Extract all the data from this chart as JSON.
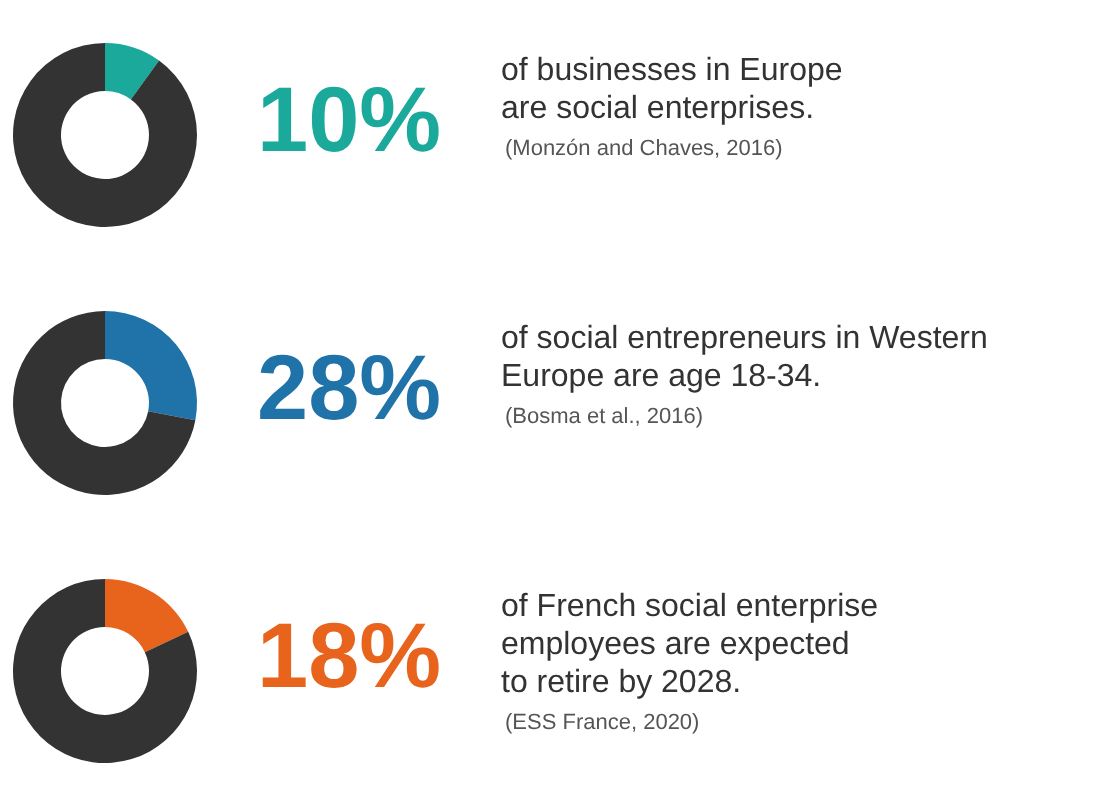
{
  "chart_data": [
    {
      "type": "donut",
      "categories": [
        null,
        null
      ],
      "values": [
        10,
        90
      ],
      "colors": [
        "#1aa99a",
        "#333333"
      ],
      "title": "10%",
      "subtitle": "of businesses in Europe\nare social enterprises.",
      "annotations": [
        "(Monzón and Chaves, 2016)"
      ]
    },
    {
      "type": "donut",
      "categories": [
        null,
        null
      ],
      "values": [
        28,
        72
      ],
      "colors": [
        "#1f73a8",
        "#333333"
      ],
      "title": "28%",
      "subtitle": "of social entrepreneurs in Western\nEurope are age 18-34.",
      "annotations": [
        "(Bosma et al., 2016)"
      ]
    },
    {
      "type": "donut",
      "categories": [
        null,
        null
      ],
      "values": [
        18,
        82
      ],
      "colors": [
        "#e8631c",
        "#333333"
      ],
      "title": "18%",
      "subtitle": "of French social enterprise\nemployees are expected\nto retire by 2028.",
      "annotations": [
        "(ESS France, 2020)"
      ]
    }
  ]
}
